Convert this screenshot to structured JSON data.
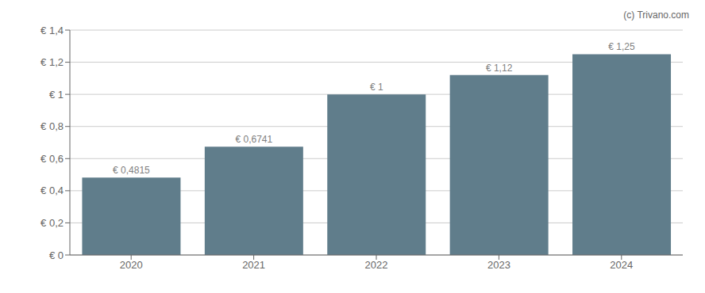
{
  "chart_data": {
    "type": "bar",
    "categories": [
      "2020",
      "2021",
      "2022",
      "2023",
      "2024"
    ],
    "values": [
      0.4815,
      0.6741,
      1.0,
      1.12,
      1.25
    ],
    "value_labels": [
      "€ 0,4815",
      "€ 0,6741",
      "€ 1",
      "€ 1,12",
      "€ 1,25"
    ],
    "data_labels": true,
    "color": "#607d8b",
    "ylim": [
      0,
      1.4
    ],
    "yticks": [
      {
        "value": 0,
        "label": "€ 0"
      },
      {
        "value": 0.2,
        "label": "€ 0,2"
      },
      {
        "value": 0.4,
        "label": "€ 0,4"
      },
      {
        "value": 0.6,
        "label": "€ 0,6"
      },
      {
        "value": 0.8,
        "label": "€ 0,8"
      },
      {
        "value": 1.0,
        "label": "€ 1"
      },
      {
        "value": 1.2,
        "label": "€ 1,2"
      },
      {
        "value": 1.4,
        "label": "€ 1,4"
      }
    ],
    "grid": true,
    "annotations": [
      "(c) Trivano.com"
    ]
  }
}
